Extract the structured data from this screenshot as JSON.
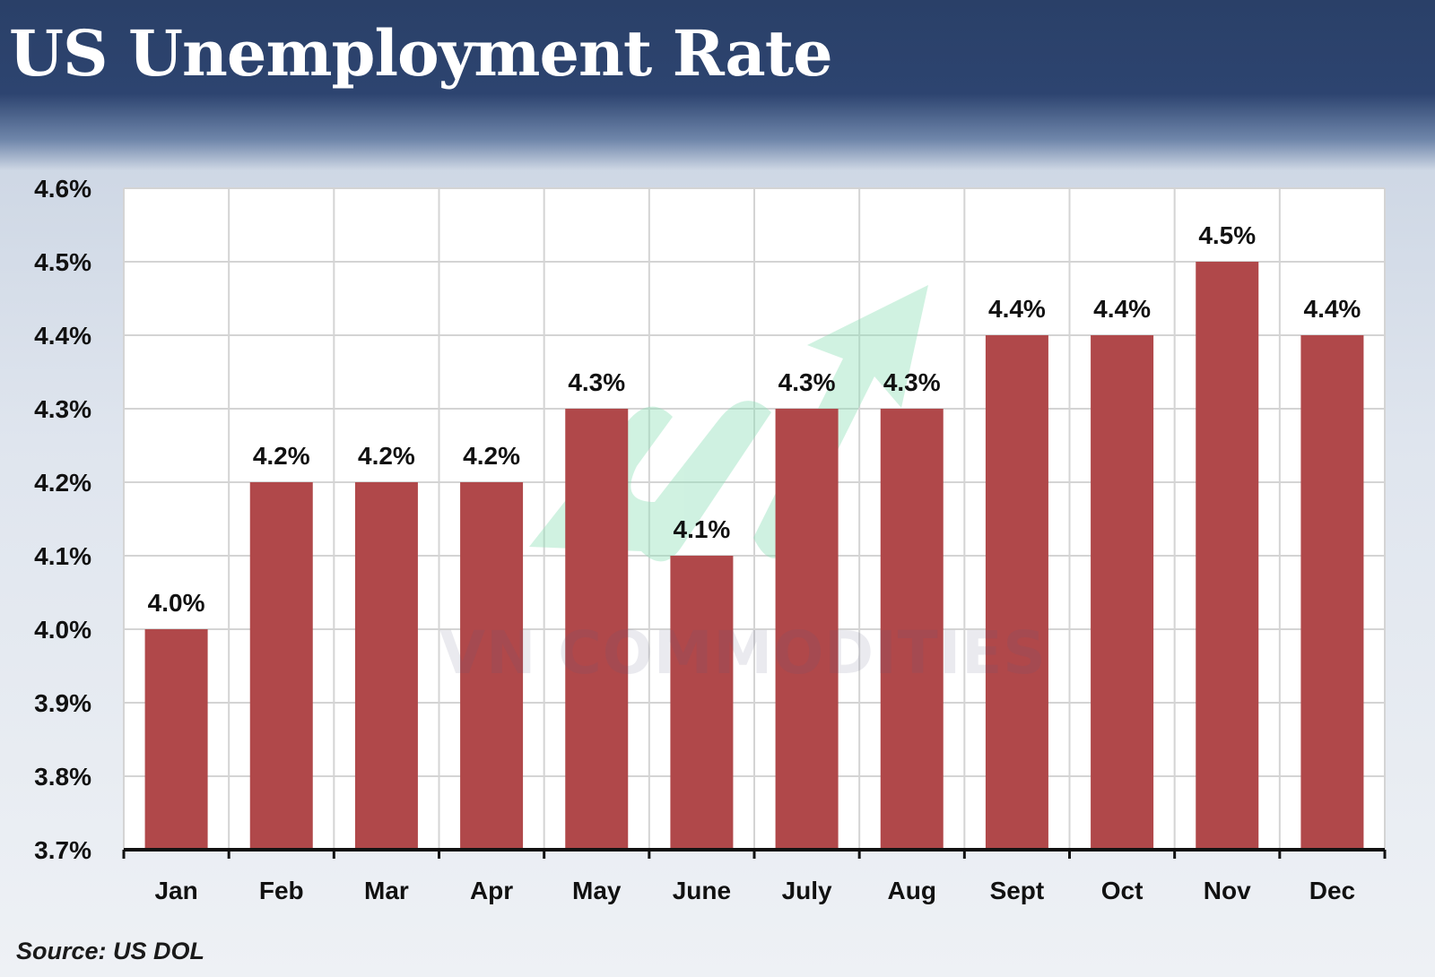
{
  "title": "US Unemployment Rate",
  "source": "Source: US DOL",
  "watermark": {
    "text": "VN COMMODITIES",
    "icon": "green-up-arrow-logo-icon"
  },
  "colors": {
    "header": "#2b4169",
    "bar": "#b0484a",
    "plot_background": "#ffffff",
    "grid": "#d4d4d4",
    "watermark_arrow": "#8fe0b8"
  },
  "chart_data": {
    "type": "bar",
    "title": "US Unemployment Rate",
    "xlabel": "",
    "ylabel": "",
    "categories": [
      "Jan",
      "Feb",
      "Mar",
      "Apr",
      "May",
      "June",
      "July",
      "Aug",
      "Sept",
      "Oct",
      "Nov",
      "Dec"
    ],
    "values": [
      4.0,
      4.2,
      4.2,
      4.2,
      4.3,
      4.1,
      4.3,
      4.3,
      4.4,
      4.4,
      4.5,
      4.4
    ],
    "data_labels": [
      "4.0%",
      "4.2%",
      "4.2%",
      "4.2%",
      "4.3%",
      "4.1%",
      "4.3%",
      "4.3%",
      "4.4%",
      "4.4%",
      "4.5%",
      "4.4%"
    ],
    "ylim": [
      3.7,
      4.6
    ],
    "yticks": [
      3.7,
      3.8,
      3.9,
      4.0,
      4.1,
      4.2,
      4.3,
      4.4,
      4.5,
      4.6
    ],
    "ytick_labels": [
      "3.7%",
      "3.8%",
      "3.9%",
      "4.0%",
      "4.1%",
      "4.2%",
      "4.3%",
      "4.4%",
      "4.5%",
      "4.6%"
    ],
    "grid": true,
    "legend": "none"
  }
}
